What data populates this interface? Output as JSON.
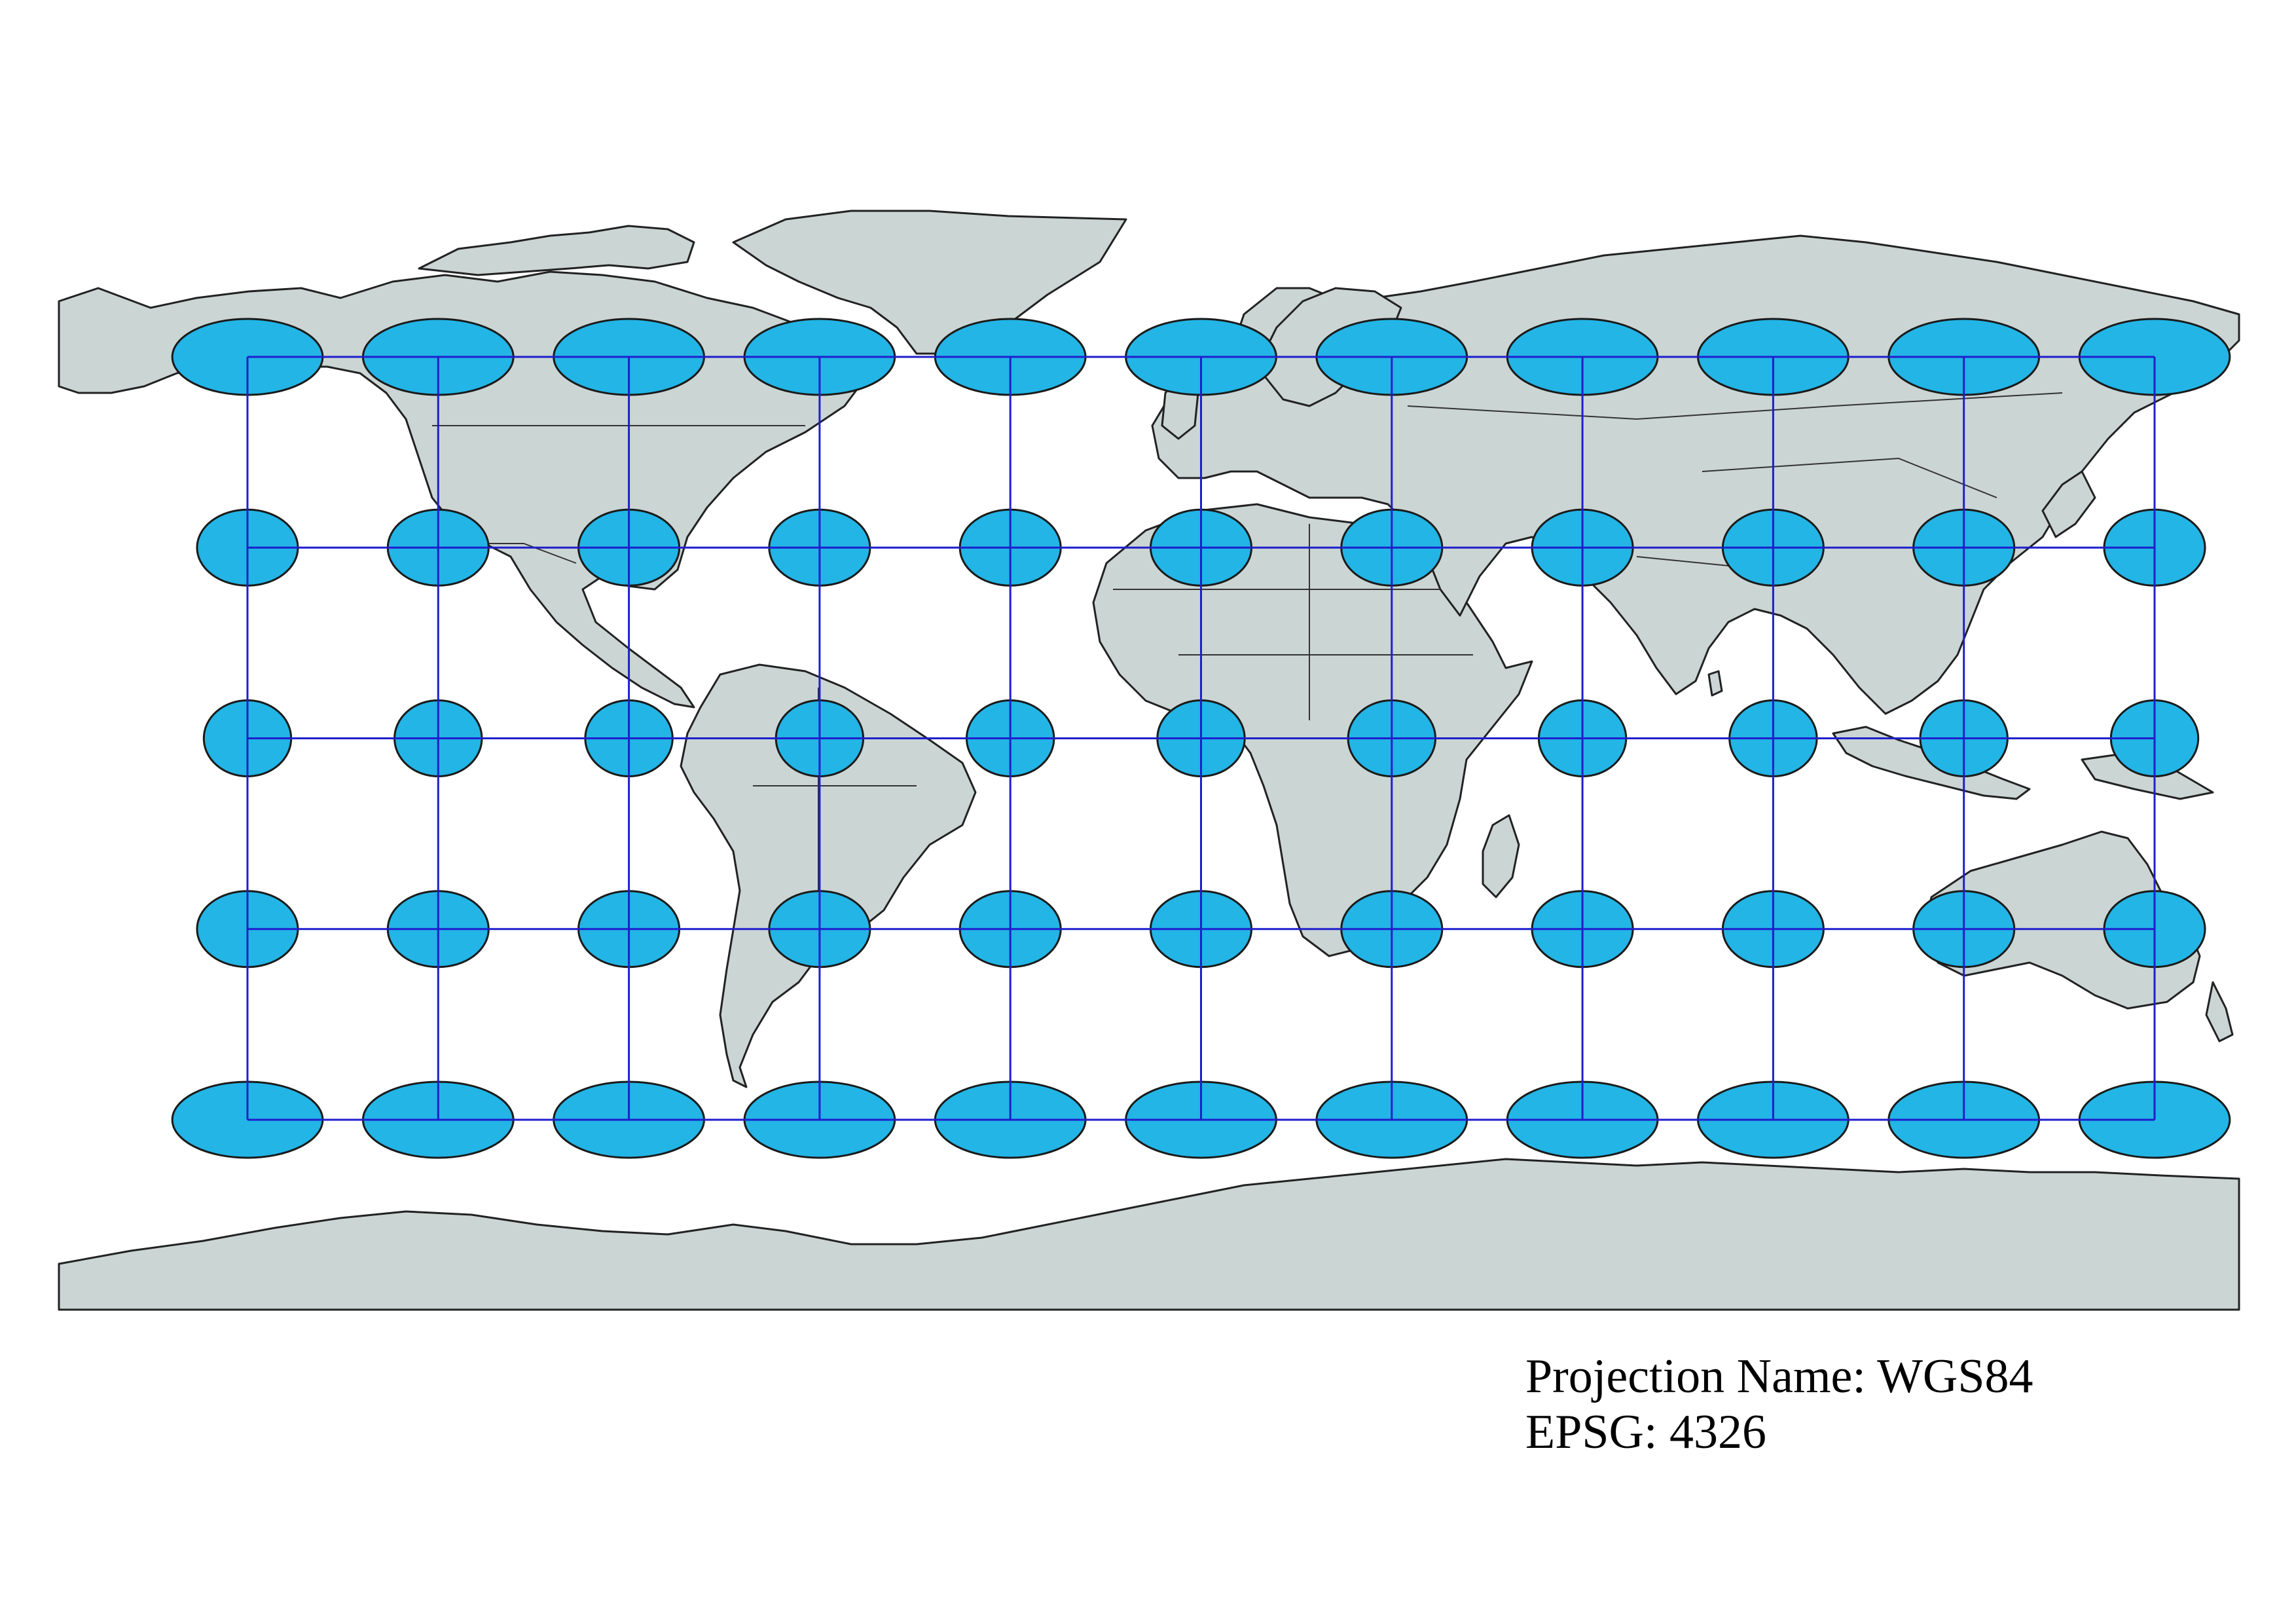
{
  "map": {
    "projection_label": "Projection Name: WGS84",
    "epsg_label": "EPSG: 4326",
    "colors": {
      "ocean": "#ffffff",
      "land": "#cbd5d3",
      "coastline": "#222222",
      "graticule": "#1f1fcc",
      "indicatrix_fill": "#22b5e6",
      "indicatrix_stroke": "#1a1a1a"
    },
    "graticule": {
      "longitudes": [
        -150,
        -120,
        -90,
        -60,
        -30,
        0,
        30,
        60,
        90,
        120,
        150
      ],
      "latitudes": [
        60,
        30,
        0,
        -30,
        -60
      ]
    },
    "indicatrix": {
      "description_shape": "ellipse",
      "relative_width_by_latitude": {
        "60": 2.0,
        "30": 1.155,
        "0": 1.0,
        "-30": 1.155,
        "-60": 2.0
      }
    }
  }
}
